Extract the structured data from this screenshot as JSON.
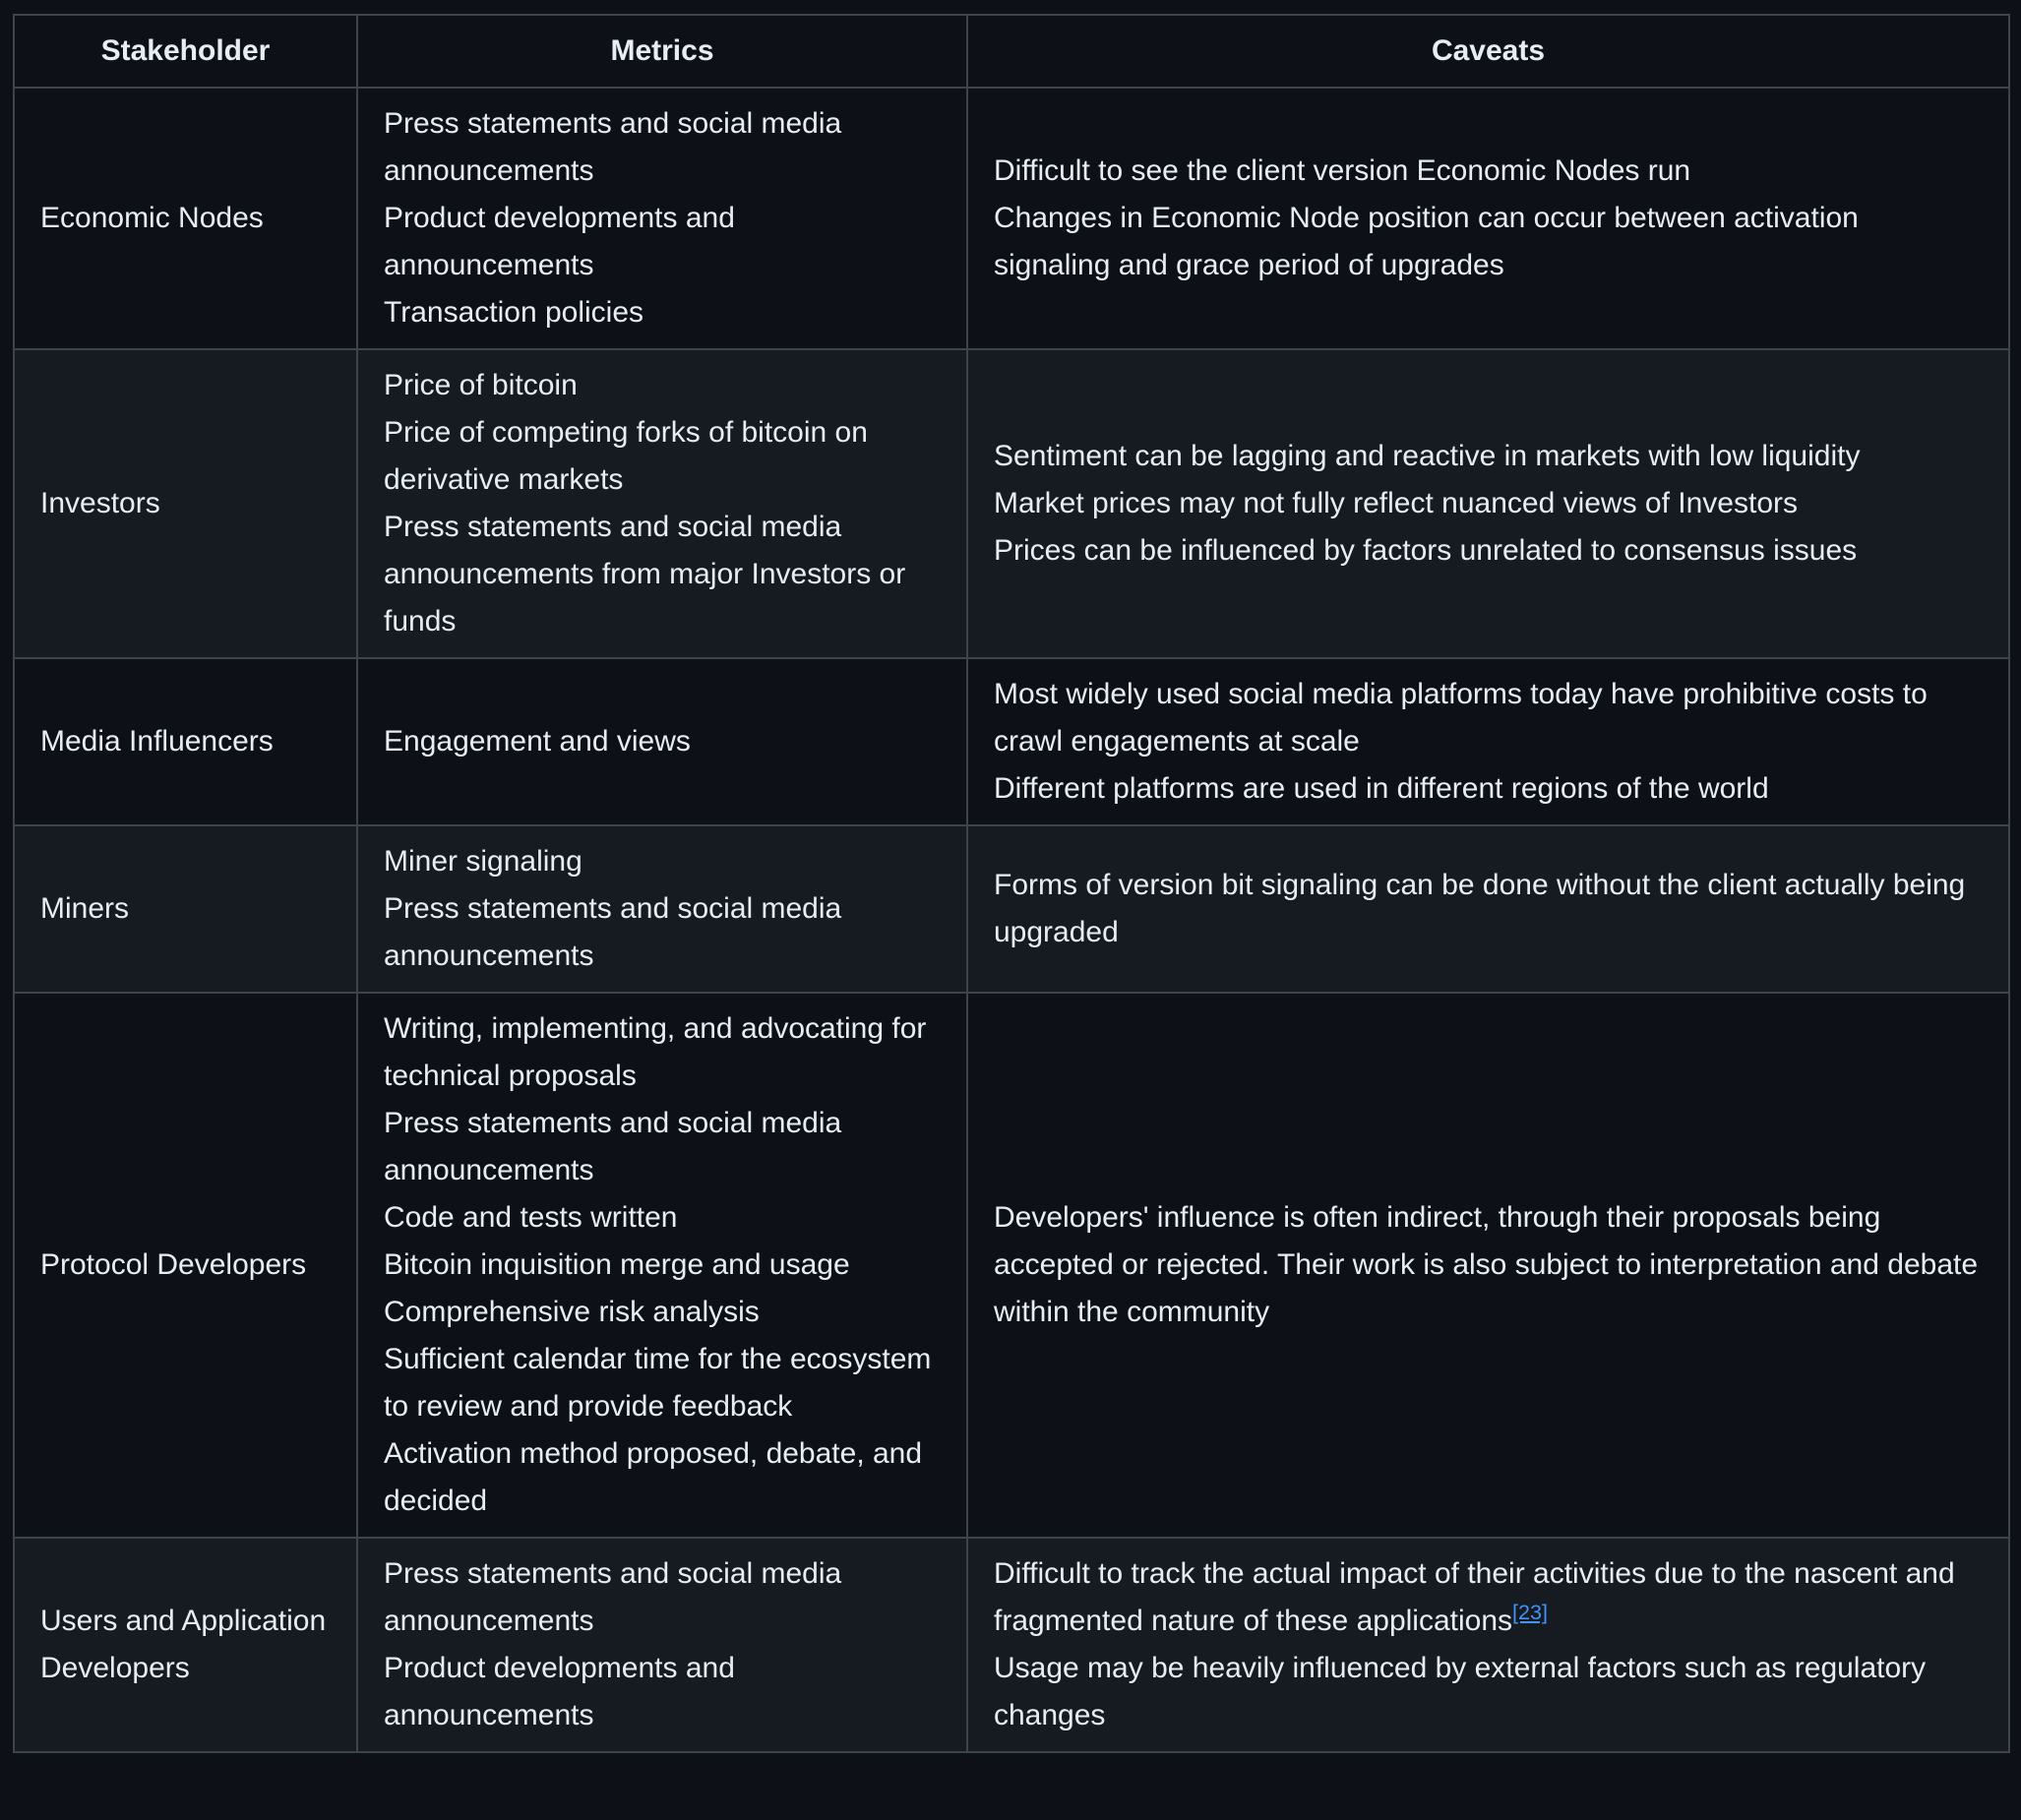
{
  "theme": {
    "page_bg": "#0d1117",
    "row_alt_bg": "#161b22",
    "border": "#3d444d",
    "text": "#e6edf3",
    "link": "#4493f8"
  },
  "table": {
    "headers": [
      "Stakeholder",
      "Metrics",
      "Caveats"
    ],
    "rows": [
      {
        "stakeholder": "Economic Nodes",
        "metrics": [
          "Press statements and social media announcements",
          "Product developments and announcements",
          "Transaction policies"
        ],
        "caveats": [
          "Difficult to see the client version Economic Nodes run",
          "Changes in Economic Node position can occur between activation signaling and grace period of upgrades"
        ]
      },
      {
        "stakeholder": "Investors",
        "metrics": [
          "Price of bitcoin",
          "Price of competing forks of bitcoin on derivative markets",
          "Press statements and social media announcements from major Investors or funds"
        ],
        "caveats": [
          "Sentiment can be lagging and reactive in markets with low liquidity",
          "Market prices may not fully reflect nuanced views of Investors",
          "Prices can be influenced by factors unrelated to consensus issues"
        ]
      },
      {
        "stakeholder": "Media Influencers",
        "metrics": [
          "Engagement and views"
        ],
        "caveats": [
          "Most widely used social media platforms today have prohibitive costs to crawl engagements at scale",
          "Different platforms are used in different regions of the world"
        ]
      },
      {
        "stakeholder": "Miners",
        "metrics": [
          "Miner signaling",
          "Press statements and social media announcements"
        ],
        "caveats": [
          "Forms of version bit signaling can be done without the client actually being upgraded"
        ]
      },
      {
        "stakeholder": "Protocol Developers",
        "metrics": [
          "Writing, implementing, and advocating for technical proposals",
          "Press statements and social media announcements",
          "Code and tests written",
          "Bitcoin inquisition merge and usage",
          "Comprehensive risk analysis",
          "Sufficient calendar time for the ecosystem to review and provide feedback",
          "Activation method proposed, debate, and decided"
        ],
        "caveats": [
          "Developers' influence is often indirect, through their proposals being accepted or rejected. Their work is also subject to interpretation and debate within the community"
        ]
      },
      {
        "stakeholder": "Users and Application Developers",
        "metrics": [
          "Press statements and social media announcements",
          "Product developments and announcements"
        ],
        "caveats": [
          {
            "text": "Difficult to track the actual impact of their activities due to the nascent and fragmented nature of these applications",
            "footnote": "[23]"
          },
          "Usage may be heavily influenced by external factors such as regulatory changes"
        ]
      }
    ]
  }
}
